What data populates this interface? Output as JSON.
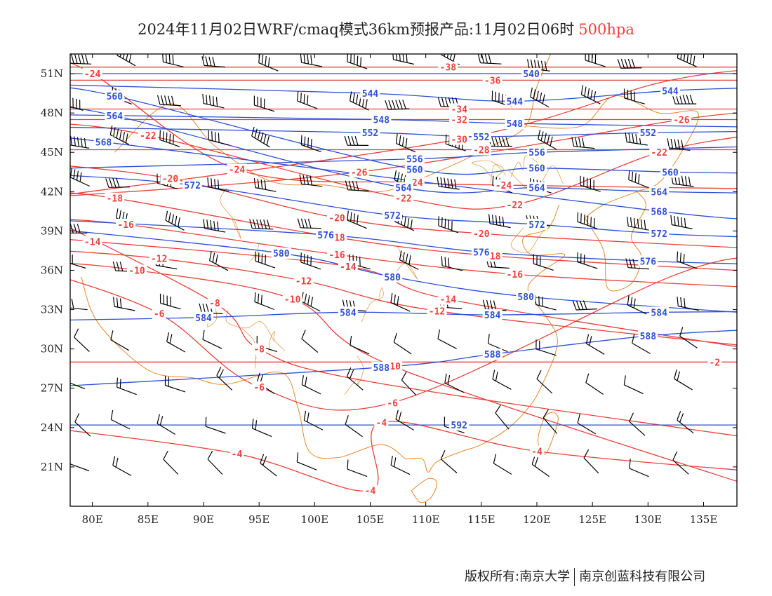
{
  "title": {
    "text": "2024年11月02日WRF/cmaq模式36km预报产品:11月02日06时",
    "level": "500hpa"
  },
  "axes": {
    "lat_labels": [
      "51N",
      "48N",
      "45N",
      "42N",
      "39N",
      "36N",
      "33N",
      "30N",
      "27N",
      "24N",
      "21N"
    ],
    "lat_values": [
      51,
      48,
      45,
      42,
      39,
      36,
      33,
      30,
      27,
      24,
      21
    ],
    "lon_labels": [
      "80E",
      "85E",
      "90E",
      "95E",
      "100E",
      "105E",
      "110E",
      "115E",
      "120E",
      "125E",
      "130E",
      "135E"
    ],
    "lon_values": [
      80,
      85,
      90,
      95,
      100,
      105,
      110,
      115,
      120,
      125,
      130,
      135
    ],
    "lon_range": [
      78,
      138
    ],
    "lat_range": [
      18,
      52.5
    ]
  },
  "colors": {
    "temperature": "#e8413a",
    "height": "#2e4fd6",
    "border": "#e0892e",
    "wind": "#000000"
  },
  "chart_data": {
    "type": "contour-map",
    "height_contours": [
      {
        "value": "540",
        "label_pos": [
          [
            119.5,
            51
          ]
        ]
      },
      {
        "value": "544",
        "label_pos": [
          [
            105,
            49.5
          ],
          [
            118,
            48.9
          ],
          [
            132,
            49.7
          ]
        ]
      },
      {
        "value": "548",
        "label_pos": [
          [
            106,
            47.5
          ],
          [
            118,
            47.2
          ]
        ]
      },
      {
        "value": "552",
        "label_pos": [
          [
            105,
            46.5
          ],
          [
            115,
            46.2
          ],
          [
            130,
            46.5
          ]
        ]
      },
      {
        "value": "556",
        "label_pos": [
          [
            109,
            44.5
          ],
          [
            120,
            45
          ]
        ]
      },
      {
        "value": "560",
        "label_pos": [
          [
            82,
            49.3
          ],
          [
            109,
            43.7
          ],
          [
            120,
            43.8
          ],
          [
            132,
            43.5
          ]
        ]
      },
      {
        "value": "564",
        "label_pos": [
          [
            82,
            47.8
          ],
          [
            108,
            42.3
          ],
          [
            120,
            42.3
          ],
          [
            131,
            42
          ]
        ]
      },
      {
        "value": "568",
        "label_pos": [
          [
            81,
            45.8
          ],
          [
            131,
            40.5
          ]
        ]
      },
      {
        "value": "572",
        "label_pos": [
          [
            89,
            42.5
          ],
          [
            107,
            40.2
          ],
          [
            120,
            39.5
          ],
          [
            131,
            38.8
          ]
        ]
      },
      {
        "value": "576",
        "label_pos": [
          [
            101,
            38.7
          ],
          [
            115,
            37.4
          ],
          [
            130,
            36.7
          ]
        ]
      },
      {
        "value": "580",
        "label_pos": [
          [
            97,
            37.3
          ],
          [
            107,
            35.5
          ],
          [
            119,
            34
          ]
        ]
      },
      {
        "value": "584",
        "label_pos": [
          [
            90,
            32.4
          ],
          [
            103,
            32.8
          ],
          [
            116,
            32.6
          ],
          [
            131,
            32.8
          ]
        ]
      },
      {
        "value": "588",
        "label_pos": [
          [
            106,
            28.6
          ],
          [
            116,
            29.6
          ],
          [
            130,
            31
          ]
        ]
      },
      {
        "value": "592",
        "label_pos": [
          [
            113,
            24.2
          ]
        ]
      }
    ],
    "temperature_contours": [
      {
        "value": "-38",
        "label_pos": [
          [
            112,
            51.5
          ]
        ]
      },
      {
        "value": "-36",
        "label_pos": [
          [
            116,
            50.5
          ]
        ]
      },
      {
        "value": "-34",
        "label_pos": [
          [
            113,
            48.3
          ]
        ]
      },
      {
        "value": "-32",
        "label_pos": [
          [
            113,
            47.5
          ]
        ]
      },
      {
        "value": "-30",
        "label_pos": [
          [
            113,
            46
          ]
        ],
        "extra": [
          [
            131,
            50.3
          ]
        ]
      },
      {
        "value": "-28",
        "label_pos": [
          [
            115,
            45.2
          ]
        ]
      },
      {
        "value": "-26",
        "label_pos": [
          [
            104,
            43.5
          ],
          [
            133,
            47.5
          ]
        ]
      },
      {
        "value": "-24",
        "label_pos": [
          [
            80,
            51
          ],
          [
            93,
            43.7
          ],
          [
            109,
            42.7
          ],
          [
            117,
            42.5
          ]
        ]
      },
      {
        "value": "-22",
        "label_pos": [
          [
            85,
            46.3
          ],
          [
            108,
            41.5
          ],
          [
            118,
            41
          ],
          [
            131,
            45
          ]
        ]
      },
      {
        "value": "-20",
        "label_pos": [
          [
            87,
            43
          ],
          [
            102,
            40
          ],
          [
            115,
            38.8
          ]
        ]
      },
      {
        "value": "-18",
        "label_pos": [
          [
            82,
            41.5
          ],
          [
            102,
            38.5
          ],
          [
            116,
            37.1
          ]
        ]
      },
      {
        "value": "-16",
        "label_pos": [
          [
            83,
            39.5
          ],
          [
            102,
            37.2
          ],
          [
            118,
            35.7
          ]
        ]
      },
      {
        "value": "-14",
        "label_pos": [
          [
            80,
            38.2
          ],
          [
            103,
            36.3
          ],
          [
            112,
            33.8
          ]
        ]
      },
      {
        "value": "-12",
        "label_pos": [
          [
            86,
            36.9
          ],
          [
            99,
            35.2
          ],
          [
            111,
            32.9
          ]
        ]
      },
      {
        "value": "-10",
        "label_pos": [
          [
            84,
            36
          ],
          [
            98,
            33.8
          ],
          [
            107,
            28.7
          ]
        ]
      },
      {
        "value": "-8",
        "label_pos": [
          [
            91,
            33.5
          ],
          [
            95,
            30
          ]
        ],
        "extra": [
          [
            105,
            27.5
          ]
        ]
      },
      {
        "value": "-6",
        "label_pos": [
          [
            86,
            32.7
          ],
          [
            95,
            27.1
          ],
          [
            107,
            25.9
          ]
        ],
        "extra": [
          [
            132,
            35.5
          ]
        ]
      },
      {
        "value": "-4",
        "label_pos": [
          [
            93,
            22
          ],
          [
            106,
            24.4
          ],
          [
            120,
            22.2
          ],
          [
            105,
            19.2
          ]
        ]
      },
      {
        "value": "-2",
        "label_pos": [
          [
            136,
            29
          ]
        ]
      }
    ]
  },
  "credit": {
    "owner": "版权所有:南京大学",
    "partner": "南京创蓝科技有限公司"
  }
}
